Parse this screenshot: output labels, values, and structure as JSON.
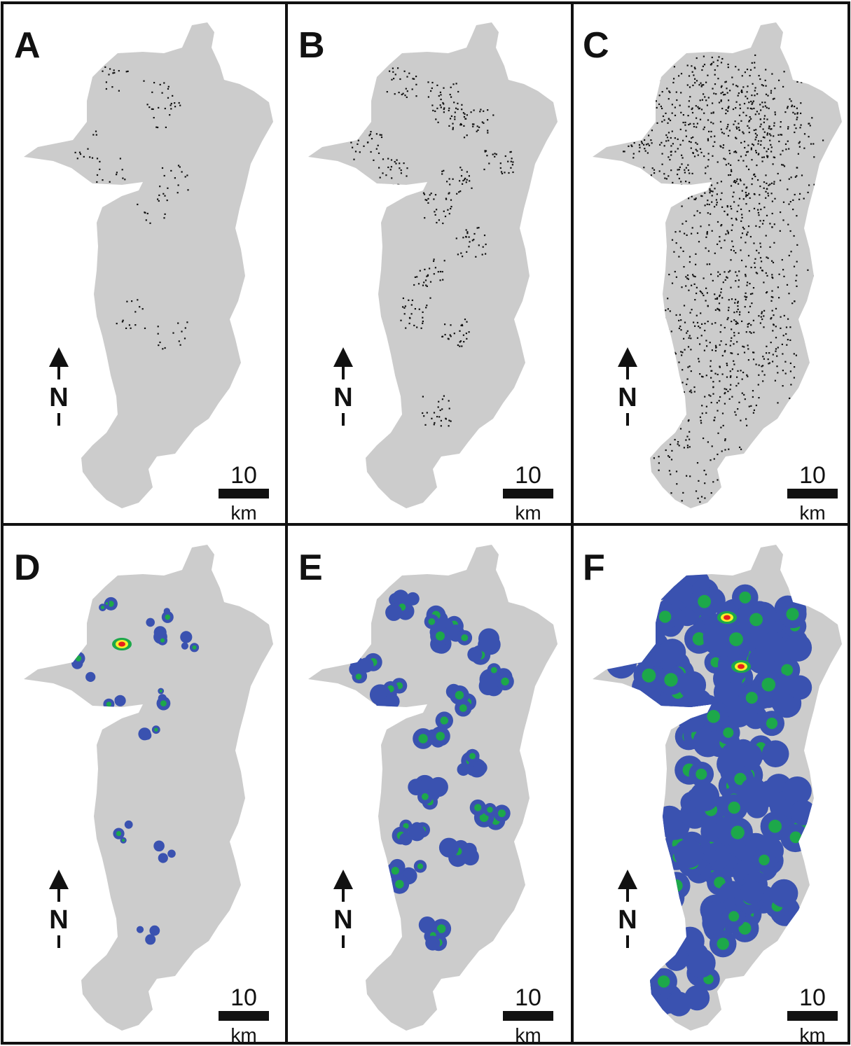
{
  "panels": [
    {
      "label": "A",
      "style": "points",
      "density": 1
    },
    {
      "label": "B",
      "style": "points",
      "density": 2
    },
    {
      "label": "C",
      "style": "points",
      "density": 3
    },
    {
      "label": "D",
      "style": "heat",
      "density": 1
    },
    {
      "label": "E",
      "style": "heat",
      "density": 2
    },
    {
      "label": "F",
      "style": "heat",
      "density": 3
    }
  ],
  "scale_bar": {
    "value": "10",
    "unit": "km"
  },
  "north_arrow": {
    "letter": "N"
  },
  "colors": {
    "region": "#cccccc",
    "points": "#111111",
    "heat_low": "#3a52b0",
    "heat_mid": "#1da84a",
    "heat_high": "#f5f02a",
    "heat_peak": "#e8211c",
    "frame": "#111111"
  },
  "icons": [
    "north-arrow-icon",
    "scale-bar-icon"
  ]
}
